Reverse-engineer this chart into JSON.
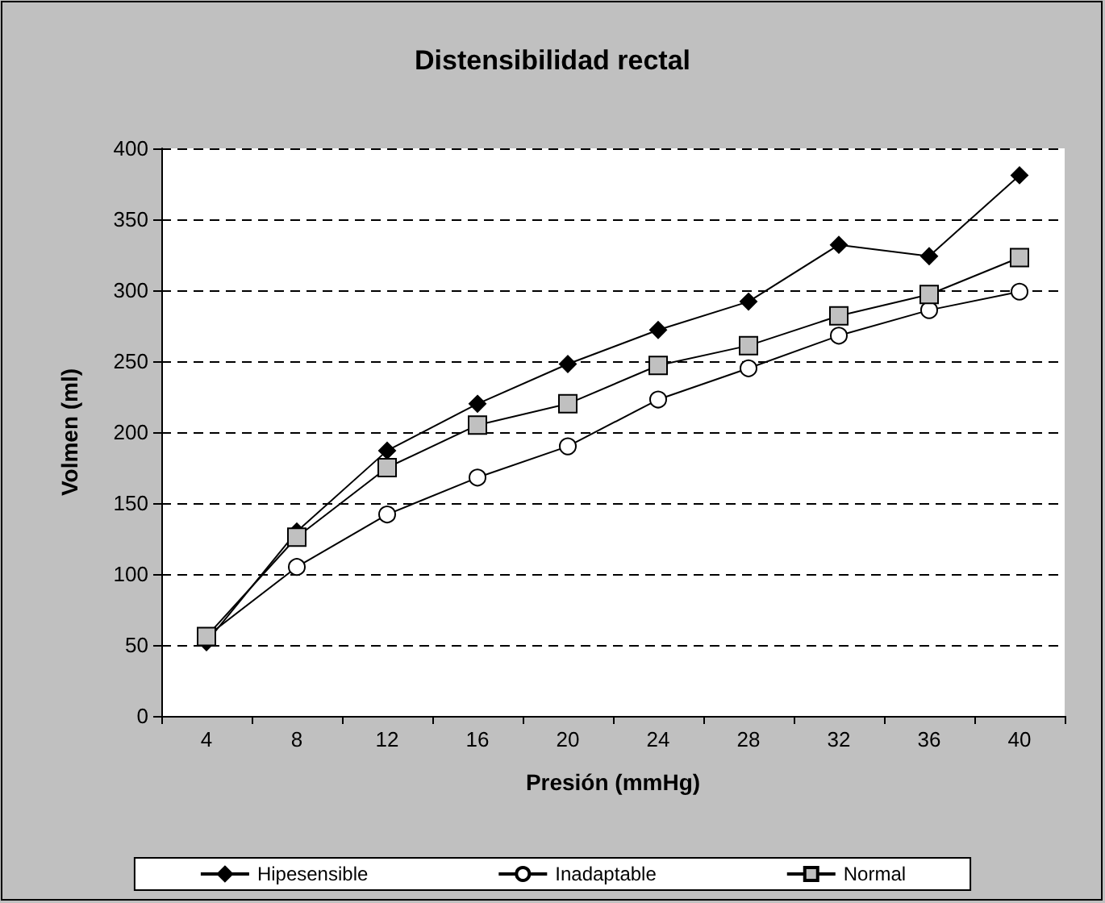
{
  "chart_data": {
    "type": "line",
    "title": "Distensibilidad rectal",
    "xlabel": "Presión (mmHg)",
    "ylabel": "Volmen (ml)",
    "categories": [
      "4",
      "8",
      "12",
      "16",
      "20",
      "24",
      "28",
      "32",
      "36",
      "40"
    ],
    "series": [
      {
        "name": "Hipesensible",
        "color": "#000000",
        "marker": "diamond",
        "values": [
          52,
          130,
          187,
          220,
          248,
          272,
          292,
          332,
          324,
          381
        ]
      },
      {
        "name": "Inadaptable",
        "color": "#ffffff",
        "marker": "circle",
        "values": [
          56,
          105,
          142,
          168,
          190,
          223,
          245,
          268,
          286,
          299
        ]
      },
      {
        "name": "Normal",
        "color": "#c0c0c0",
        "marker": "square",
        "values": [
          56,
          126,
          175,
          205,
          220,
          247,
          261,
          282,
          297,
          323
        ]
      }
    ],
    "ylim": [
      0,
      400
    ],
    "yticks": [
      0,
      50,
      100,
      150,
      200,
      250,
      300,
      350,
      400
    ],
    "grid": "y",
    "legend": "bottom",
    "line_style": "solid"
  }
}
